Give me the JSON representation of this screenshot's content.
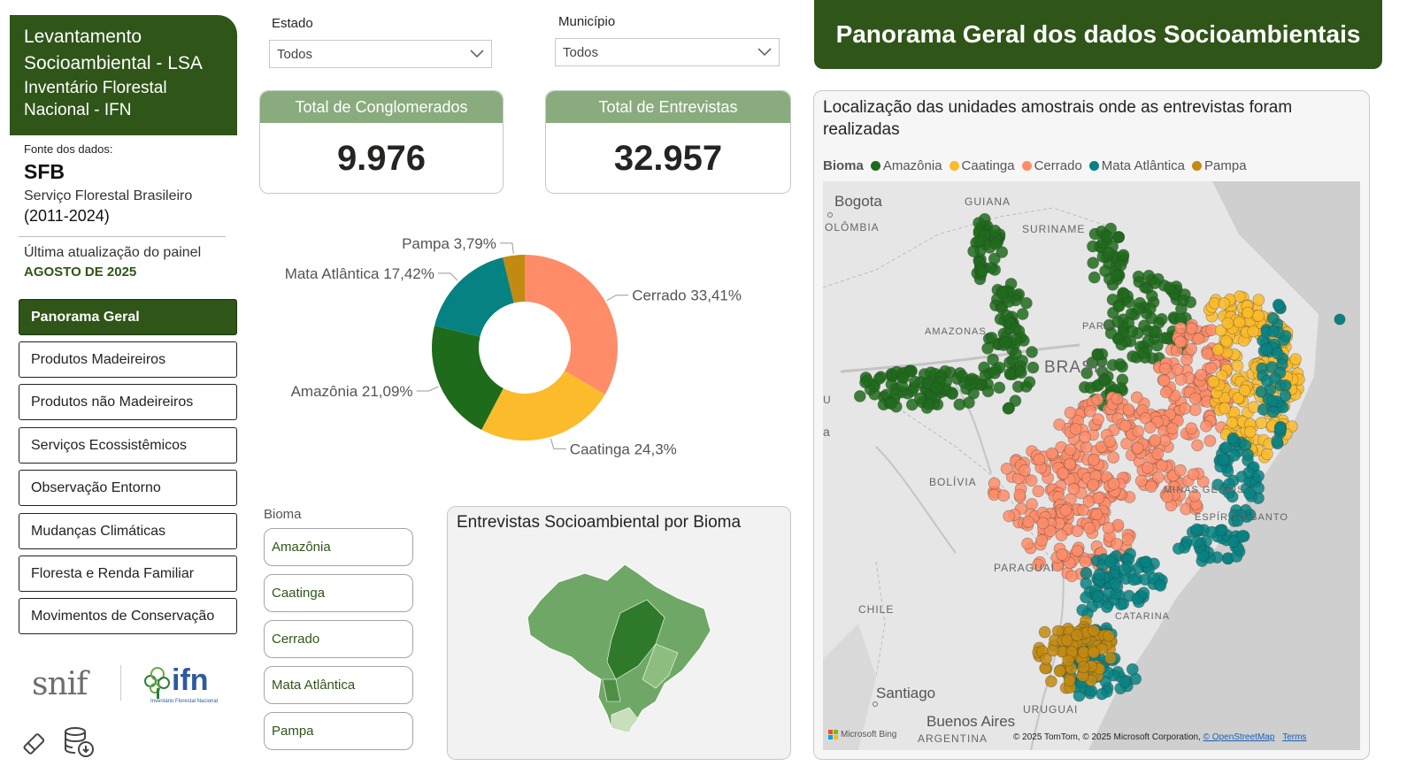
{
  "sidebar": {
    "brand_line1": "Levantamento",
    "brand_line2": "Socioambiental - LSA",
    "brand_line3": "Inventário Florestal",
    "brand_line4": "Nacional - IFN",
    "source_label": "Fonte dos dados:",
    "source_acronym": "SFB",
    "source_name": "Serviço Florestal Brasileiro",
    "source_years": "(2011-2024)",
    "update_label": "Última atualização do painel",
    "update_value": "AGOSTO DE 2025",
    "nav": [
      {
        "label": "Panorama Geral",
        "active": true
      },
      {
        "label": "Produtos Madeireiros"
      },
      {
        "label": "Produtos não Madeireiros"
      },
      {
        "label": "Serviços Ecossistêmicos"
      },
      {
        "label": "Observação Entorno"
      },
      {
        "label": "Mudanças Climáticas"
      },
      {
        "label": "Floresta e Renda Familiar"
      },
      {
        "label": "Movimentos de Conservação"
      }
    ],
    "logo_snif": "snif",
    "logo_ifn": "ifn",
    "logo_ifn_sub": "Inventário Florestal Nacional"
  },
  "filters": {
    "estado_label": "Estado",
    "estado_value": "Todos",
    "municipio_label": "Município",
    "municipio_value": "Todos"
  },
  "kpis": {
    "conglomerados_label": "Total de Conglomerados",
    "conglomerados_value": "9.976",
    "entrevistas_label": "Total de Entrevistas",
    "entrevistas_value": "32.957"
  },
  "chart_data": {
    "type": "pie",
    "donut": true,
    "slices": [
      {
        "label": "Cerrado",
        "value": 33.41,
        "display": "Cerrado 33,41%",
        "color": "#fe8c69"
      },
      {
        "label": "Caatinga",
        "value": 24.3,
        "display": "Caatinga 24,3%",
        "color": "#fbbb2a"
      },
      {
        "label": "Amazônia",
        "value": 21.09,
        "display": "Amazônia 21,09%",
        "color": "#1e6b1b"
      },
      {
        "label": "Mata Atlântica",
        "value": 17.42,
        "display": "Mata Atlântica 17,42%",
        "color": "#078282"
      },
      {
        "label": "Pampa",
        "value": 3.79,
        "display": "Pampa 3,79%",
        "color": "#c28a10"
      }
    ]
  },
  "bioma_slicer": {
    "label": "Bioma",
    "options": [
      "Amazônia",
      "Caatinga",
      "Cerrado",
      "Mata Atlântica",
      "Pampa"
    ]
  },
  "bioma_map_card": {
    "title": "Entrevistas Socioambiental por Bioma"
  },
  "header": {
    "title": "Panorama Geral dos dados Socioambientais"
  },
  "map": {
    "title": "Localização das unidades amostrais onde as entrevistas foram realizadas",
    "legend_title": "Bioma",
    "legend": [
      {
        "label": "Amazônia",
        "color": "#1e6b1b"
      },
      {
        "label": "Caatinga",
        "color": "#fbbb2a"
      },
      {
        "label": "Cerrado",
        "color": "#fe8c69"
      },
      {
        "label": "Mata Atlântica",
        "color": "#078282"
      },
      {
        "label": "Pampa",
        "color": "#c28a10"
      }
    ],
    "places": {
      "bogota": "Bogota",
      "colombia": "OLÔMBIA",
      "guiana": "GUIANA",
      "suriname": "SURINAME",
      "amazonas": "AMAZONAS",
      "para": "PARÁ",
      "brasil": "BRASIL",
      "bolivia": "BOLÍVIA",
      "minas": "MINAS GERAIS",
      "espirito": "ESPÍRITO SANTO",
      "paraguai": "PARAGUAI",
      "chile": "CHILE",
      "catarina": "CATARINA",
      "santiago": "Santiago",
      "buenos": "Buenos Aires",
      "uruguai": "URUGUAI",
      "argentina": "ARGENTINA",
      "edge_u": "U",
      "edge_a": "a"
    },
    "attribution": {
      "bing": "Microsoft Bing",
      "copyright": "© 2025 TomTom, © 2025 Microsoft Corporation,",
      "osm": "© OpenStreetMap",
      "terms": "Terms"
    }
  }
}
